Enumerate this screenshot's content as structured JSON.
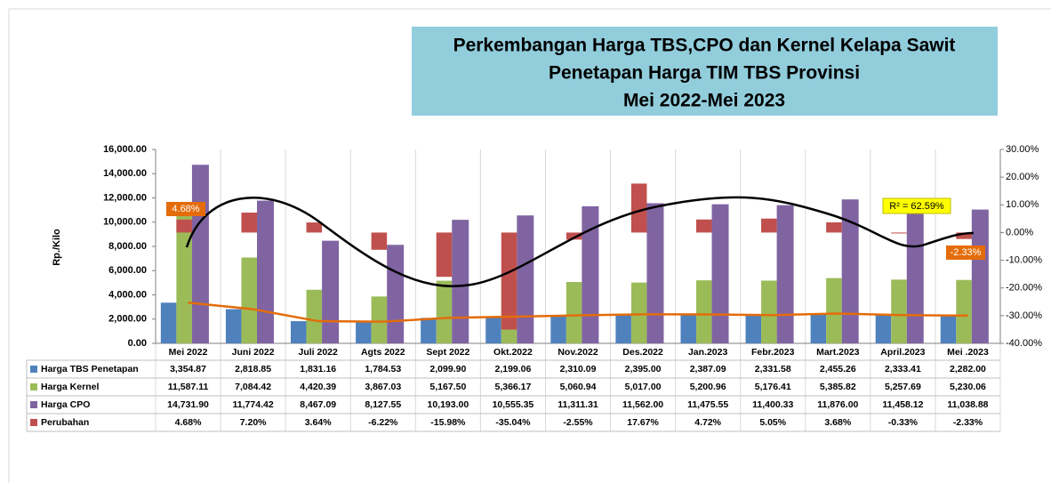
{
  "chart_data": {
    "type": "bar",
    "title_lines": [
      "Perkembangan Harga TBS,CPO dan Kernel Kelapa Sawit",
      "Penetapan Harga TIM TBS Provinsi",
      "Mei 2022-Mei 2023"
    ],
    "y_label": "Rp./Kilo",
    "categories": [
      "Mei 2022",
      "Juni 2022",
      "Juli 2022",
      "Agts 2022",
      "Sept 2022",
      "Okt.2022",
      "Nov.2022",
      "Des.2022",
      "Jan.2023",
      "Febr.2023",
      "Mart.2023",
      "April.2023",
      "Mei .2023"
    ],
    "series": [
      {
        "name": "Harga TBS Penetapan",
        "color": "#4f81bd",
        "values": [
          3354.87,
          2818.85,
          1831.16,
          1784.53,
          2099.9,
          2199.06,
          2310.09,
          2395.0,
          2387.09,
          2331.58,
          2455.26,
          2333.41,
          2282.0
        ],
        "value_labels": [
          "3,354.87",
          "2,818.85",
          "1,831.16",
          "1,784.53",
          "2,099.90",
          "2,199.06",
          "2,310.09",
          "2,395.00",
          "2,387.09",
          "2,331.58",
          "2,455.26",
          "2,333.41",
          "2,282.00"
        ]
      },
      {
        "name": "Harga Kernel",
        "color": "#9bbb59",
        "values": [
          11587.11,
          7084.42,
          4420.39,
          3867.03,
          5167.5,
          5366.17,
          5060.94,
          5017.0,
          5200.96,
          5176.41,
          5385.82,
          5257.69,
          5230.06
        ],
        "value_labels": [
          "11,587.11",
          "7,084.42",
          "4,420.39",
          "3,867.03",
          "5,167.50",
          "5,366.17",
          "5,060.94",
          "5,017.00",
          "5,200.96",
          "5,176.41",
          "5,385.82",
          "5,257.69",
          "5,230.06"
        ]
      },
      {
        "name": "Harga CPO",
        "color": "#8064a2",
        "values": [
          14731.9,
          11774.42,
          8467.09,
          8127.55,
          10193.0,
          10555.35,
          11311.31,
          11562.0,
          11475.55,
          11400.33,
          11876.0,
          11458.12,
          11038.88
        ],
        "value_labels": [
          "14,731.90",
          "11,774.42",
          "8,467.09",
          "8,127.55",
          "10,193.00",
          "10,555.35",
          "11,311.31",
          "11,562.00",
          "11,475.55",
          "11,400.33",
          "11,876.00",
          "11,458.12",
          "11,038.88"
        ]
      },
      {
        "name": "Perubahan",
        "color": "#c0504d",
        "axis": "y2",
        "values": [
          4.68,
          7.2,
          3.64,
          -6.22,
          -15.98,
          -35.04,
          -2.55,
          17.67,
          4.72,
          5.05,
          3.68,
          -0.33,
          -2.33
        ],
        "value_labels": [
          "4.68%",
          "7.20%",
          "3.64%",
          "-6.22%",
          "-15.98%",
          "-35.04%",
          "-2.55%",
          "17.67%",
          "4.72%",
          "5.05%",
          "3.68%",
          "-0.33%",
          "-2.33%"
        ]
      }
    ],
    "line_color": "#e46c0a",
    "ylim": [
      0,
      16000
    ],
    "yticks": [
      {
        "value": 0,
        "label": "0.00"
      },
      {
        "value": 2000,
        "label": "2,000.00"
      },
      {
        "value": 4000,
        "label": "4,000.00"
      },
      {
        "value": 6000,
        "label": "6,000.00"
      },
      {
        "value": 8000,
        "label": "8,000.00"
      },
      {
        "value": 10000,
        "label": "10,000.00"
      },
      {
        "value": 12000,
        "label": "12,000.00"
      },
      {
        "value": 14000,
        "label": "14,000.00"
      },
      {
        "value": 16000,
        "label": "16,000.00"
      }
    ],
    "y2lim": [
      -40,
      30
    ],
    "y2ticks": [
      {
        "value": -40,
        "label": "-40.00%"
      },
      {
        "value": -30,
        "label": "-30.00%"
      },
      {
        "value": -20,
        "label": "-20.00%"
      },
      {
        "value": -10,
        "label": "-10.00%"
      },
      {
        "value": 0,
        "label": "0.00%"
      },
      {
        "value": 10,
        "label": "10.00%"
      },
      {
        "value": 20,
        "label": "20.00%"
      },
      {
        "value": 30,
        "label": "30.00%"
      }
    ],
    "annotations": [
      "4.68%",
      "-2.33%",
      "R² = 62.59%"
    ]
  }
}
